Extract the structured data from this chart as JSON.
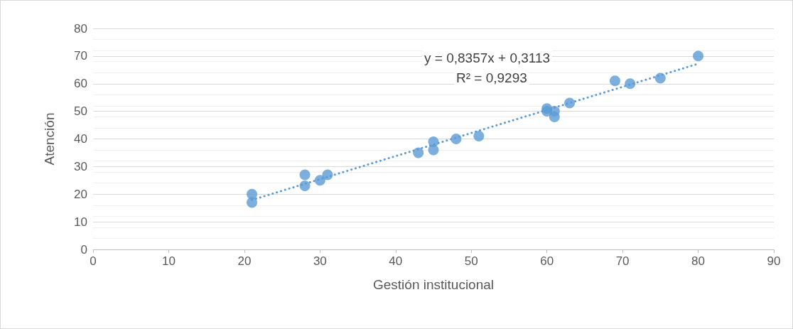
{
  "chart_data": {
    "type": "scatter",
    "xlabel": "Gestión institucional",
    "ylabel": "Atención",
    "xlim": [
      0,
      90
    ],
    "xticks": [
      0,
      10,
      20,
      30,
      40,
      50,
      60,
      70,
      80,
      90
    ],
    "ylim": [
      0,
      80
    ],
    "yticks": [
      0,
      10,
      20,
      30,
      40,
      50,
      60,
      70,
      80
    ],
    "grid": "y",
    "marker": "circle",
    "series": [
      {
        "color": "#5b9bd5",
        "x": [
          21,
          21,
          28,
          28,
          30,
          31,
          43,
          45,
          45,
          48,
          51,
          60,
          60,
          61,
          61,
          63,
          69,
          71,
          75,
          80
        ],
        "values": [
          20,
          17,
          27,
          23,
          25,
          27,
          35,
          39,
          36,
          40,
          41,
          51,
          50,
          50,
          48,
          53,
          61,
          60,
          62,
          70
        ]
      },
      {
        "type": "line",
        "color": "#5b9bd5",
        "line_style": "dotted",
        "marker": "none",
        "x": [
          21,
          80
        ],
        "values": [
          17.9,
          67.2
        ]
      }
    ],
    "annotations": [
      "y = 0,8357x + 0,3113",
      "R² = 0,9293"
    ]
  }
}
